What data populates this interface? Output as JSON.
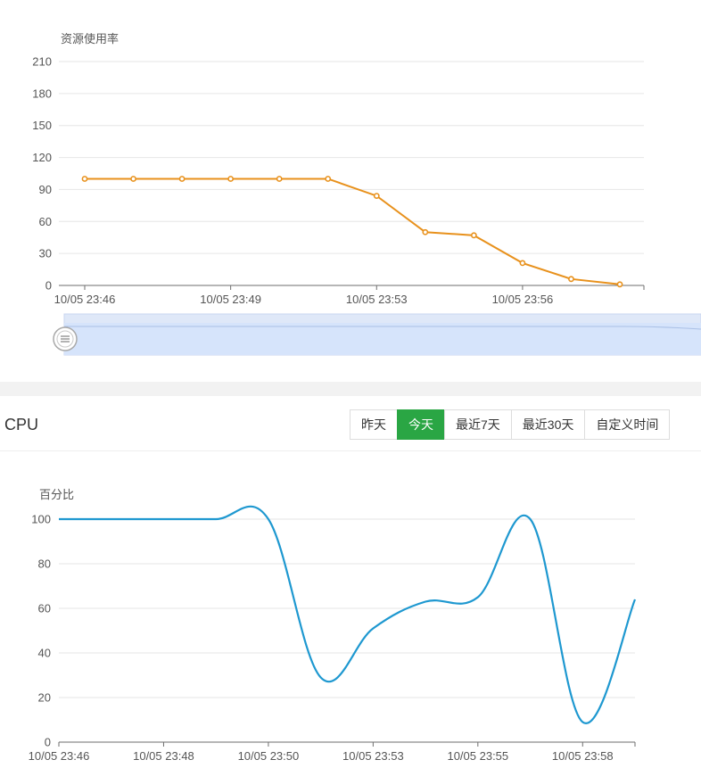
{
  "cpu_section": {
    "title": "CPU",
    "range_buttons": [
      {
        "label": "昨天",
        "active": false
      },
      {
        "label": "今天",
        "active": true
      },
      {
        "label": "最近7天",
        "active": false
      },
      {
        "label": "最近30天",
        "active": false
      },
      {
        "label": "自定义时间",
        "active": false
      }
    ]
  },
  "colors": {
    "resource_line": "#e8911c",
    "cpu_line": "#1e98d0",
    "active_button": "#2aa644",
    "datazoom_fill": "#d6e4fb"
  },
  "chart_data": [
    {
      "type": "line",
      "title": "",
      "ylabel": "资源使用率",
      "xlabel": "",
      "ylim": [
        0,
        210
      ],
      "yticks": [
        0,
        30,
        60,
        90,
        120,
        150,
        180,
        210
      ],
      "x_tick_labels": [
        "10/05 23:46",
        "10/05 23:49",
        "10/05 23:53",
        "10/05 23:56"
      ],
      "x_tick_index": [
        0,
        3,
        6,
        9
      ],
      "x": [
        "10/05 23:46",
        "10/05 23:47",
        "10/05 23:48",
        "10/05 23:49",
        "10/05 23:50",
        "10/05 23:52",
        "10/05 23:53",
        "10/05 23:54",
        "10/05 23:55",
        "10/05 23:56",
        "10/05 23:57",
        "10/05 23:58"
      ],
      "series": [
        {
          "values": [
            100,
            100,
            100,
            100,
            100,
            100,
            84,
            50,
            47,
            21,
            6,
            1
          ]
        }
      ],
      "grid": true,
      "datazoom": true
    },
    {
      "type": "line",
      "title": "",
      "ylabel": "百分比",
      "xlabel": "",
      "ylim": [
        0,
        100
      ],
      "yticks": [
        0,
        20,
        40,
        60,
        80,
        100
      ],
      "x_tick_labels": [
        "10/05 23:46",
        "10/05 23:48",
        "10/05 23:50",
        "10/05 23:53",
        "10/05 23:55",
        "10/05 23:58"
      ],
      "x_tick_index": [
        0,
        2,
        4,
        6,
        8,
        10
      ],
      "x": [
        "10/05 23:46",
        "10/05 23:47",
        "10/05 23:48",
        "10/05 23:49",
        "10/05 23:50",
        "10/05 23:51",
        "10/05 23:53",
        "10/05 23:54",
        "10/05 23:55",
        "10/05 23:56",
        "10/05 23:58",
        "10/05 23:59"
      ],
      "series": [
        {
          "values": [
            100,
            100,
            100,
            100,
            100,
            29,
            51,
            63,
            65,
            100,
            9,
            64
          ]
        }
      ],
      "smooth": true,
      "grid": true
    }
  ]
}
